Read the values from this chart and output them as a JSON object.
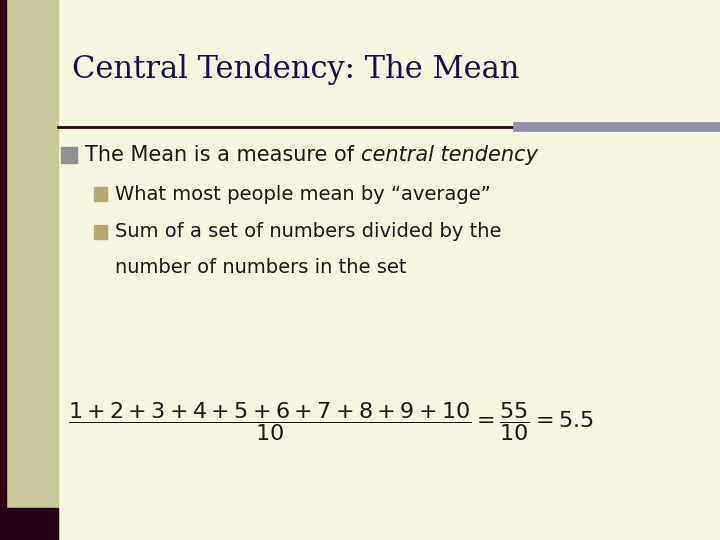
{
  "title": "Central Tendency: The Mean",
  "background_color": "#f5f5e0",
  "left_bar_color": "#c8c89a",
  "left_bar_dark_color": "#2a0018",
  "title_color": "#1a1050",
  "sep_line_dark_color": "#2a0018",
  "sep_line_light_color": "#9090a8",
  "bullet1_normal": "The Mean is a measure of ",
  "bullet1_italic": "central tendency",
  "text_color": "#1a1a1a",
  "bullet_sq1_color": "#909090",
  "bullet_sq2_color": "#b8a870",
  "sub_bullet1": "What most people mean by “average”",
  "sub_bullet2_line1": "Sum of a set of numbers divided by the",
  "sub_bullet2_line2": "number of numbers in the set",
  "formula_color": "#1a1a1a",
  "figsize": [
    7.2,
    5.4
  ],
  "dpi": 100
}
